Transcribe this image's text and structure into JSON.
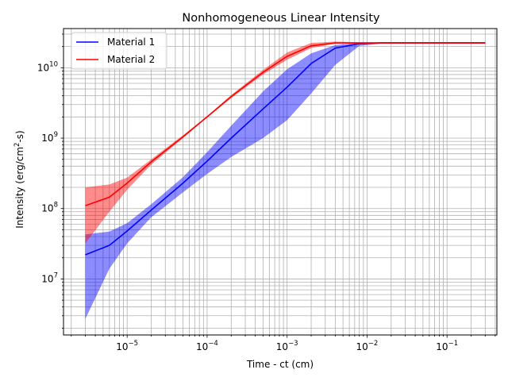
{
  "chart_data": {
    "type": "area",
    "title": "Nonhomogeneous Linear Intensity",
    "xlabel": "Time - ct (cm)",
    "ylabel_prefix": "Intensity (erg/cm",
    "ylabel_sup": "2",
    "ylabel_suffix": "-s)",
    "xscale": "log",
    "yscale": "log",
    "xlim": [
      1.6e-06,
      0.42
    ],
    "ylim": [
      1600000.0,
      36000000000.0
    ],
    "grid": true,
    "legend_position": "top-left",
    "x_ticks": [
      {
        "value": 1e-05,
        "base": "10",
        "exp": "−5"
      },
      {
        "value": 0.0001,
        "base": "10",
        "exp": "−4"
      },
      {
        "value": 0.001,
        "base": "10",
        "exp": "−3"
      },
      {
        "value": 0.01,
        "base": "10",
        "exp": "−2"
      },
      {
        "value": 0.1,
        "base": "10",
        "exp": "−1"
      }
    ],
    "y_ticks": [
      {
        "value": 10000000.0,
        "base": "10",
        "exp": "7"
      },
      {
        "value": 100000000.0,
        "base": "10",
        "exp": "8"
      },
      {
        "value": 1000000000.0,
        "base": "10",
        "exp": "9"
      },
      {
        "value": 10000000000.0,
        "base": "10",
        "exp": "10"
      }
    ],
    "series": [
      {
        "name": "Material 1",
        "color": "#0000ff",
        "fill_color": "#0000ff",
        "fill_opacity": 0.45,
        "x": [
          3e-06,
          6e-06,
          1e-05,
          2e-05,
          5e-05,
          0.0001,
          0.0002,
          0.0005,
          0.001,
          0.002,
          0.004,
          0.008,
          0.015,
          0.03,
          0.1,
          0.3
        ],
        "y": [
          22000000.0,
          30000000.0,
          48000000.0,
          95000000.0,
          230000000.0,
          470000000.0,
          1000000000.0,
          2600000000.0,
          5300000000.0,
          11500000000.0,
          19000000000.0,
          22000000000.0,
          22500000000.0,
          22500000000.0,
          22500000000.0,
          22500000000.0
        ],
        "lower": [
          2700000.0,
          14000000.0,
          32000000.0,
          75000000.0,
          170000000.0,
          310000000.0,
          540000000.0,
          1000000000.0,
          1800000000.0,
          4300000000.0,
          11000000000.0,
          20500000000.0,
          22000000000.0,
          22000000000.0,
          22000000000.0,
          22000000000.0
        ],
        "upper": [
          43000000.0,
          47000000.0,
          62000000.0,
          115000000.0,
          280000000.0,
          630000000.0,
          1500000000.0,
          4600000000.0,
          9500000000.0,
          16000000000.0,
          21000000000.0,
          22500000000.0,
          23000000000.0,
          23000000000.0,
          23000000000.0,
          23000000000.0
        ]
      },
      {
        "name": "Material 2",
        "color": "#ff0000",
        "fill_color": "#ff0000",
        "fill_opacity": 0.45,
        "x": [
          3e-06,
          6e-06,
          1e-05,
          2e-05,
          5e-05,
          0.0001,
          0.0002,
          0.0005,
          0.001,
          0.002,
          0.004,
          0.008,
          0.015,
          0.03,
          0.1,
          0.3
        ],
        "y": [
          110000000.0,
          145000000.0,
          230000000.0,
          460000000.0,
          1050000000.0,
          2000000000.0,
          3900000000.0,
          8600000000.0,
          14500000000.0,
          20500000000.0,
          22500000000.0,
          22500000000.0,
          22500000000.0,
          22500000000.0,
          22500000000.0,
          22500000000.0
        ],
        "lower": [
          32000000.0,
          90000000.0,
          185000000.0,
          420000000.0,
          1000000000.0,
          1950000000.0,
          3700000000.0,
          8000000000.0,
          13000000000.0,
          19000000000.0,
          22000000000.0,
          22000000000.0,
          22000000000.0,
          22000000000.0,
          22000000000.0,
          22000000000.0
        ],
        "upper": [
          200000000.0,
          220000000.0,
          275000000.0,
          500000000.0,
          1100000000.0,
          2050000000.0,
          4100000000.0,
          9300000000.0,
          16500000000.0,
          22500000000.0,
          23500000000.0,
          23000000000.0,
          23000000000.0,
          23000000000.0,
          23000000000.0,
          23000000000.0
        ]
      }
    ]
  }
}
